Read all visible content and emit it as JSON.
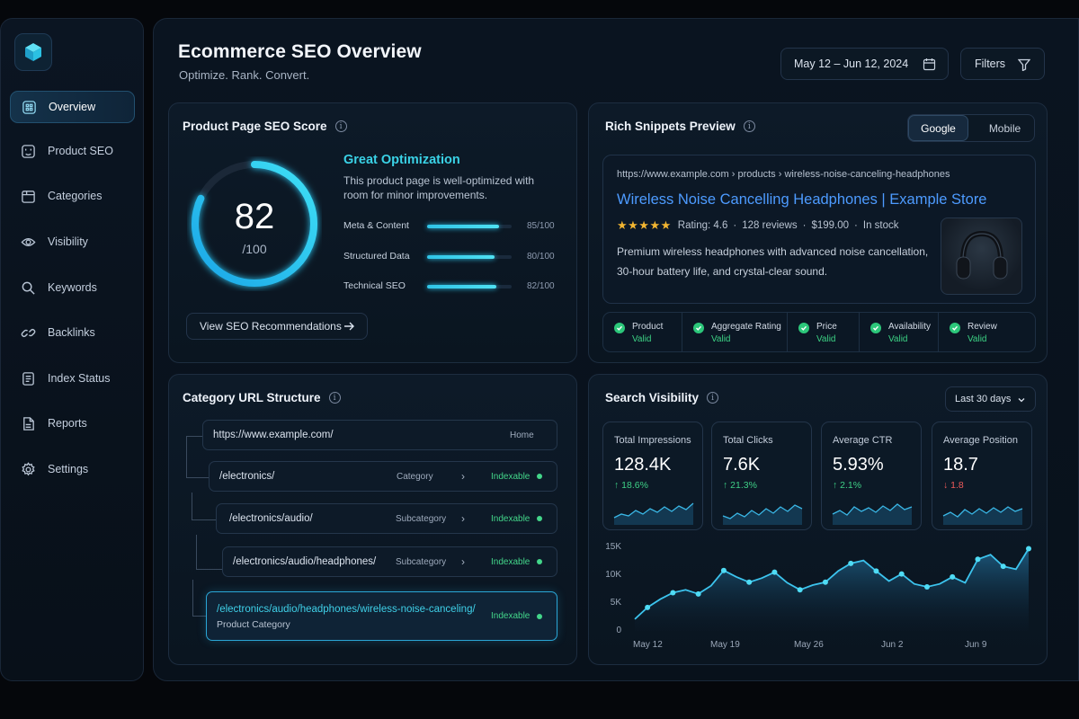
{
  "sidebar": {
    "logo": "cube-logo-icon",
    "items": [
      {
        "label": "Overview",
        "icon": "overview-icon",
        "active": true
      },
      {
        "label": "Product SEO",
        "icon": "product-seo-icon"
      },
      {
        "label": "Categories",
        "icon": "categories-icon"
      },
      {
        "label": "Visibility",
        "icon": "eye-icon"
      },
      {
        "label": "Keywords",
        "icon": "search-icon"
      },
      {
        "label": "Backlinks",
        "icon": "link-icon"
      },
      {
        "label": "Index Status",
        "icon": "document-icon"
      },
      {
        "label": "Reports",
        "icon": "report-icon"
      },
      {
        "label": "Settings",
        "icon": "gear-icon"
      }
    ]
  },
  "header": {
    "title": "Ecommerce SEO Overview",
    "subtitle": "Optimize. Rank. Convert.",
    "date_range": "May 12 – Jun 12, 2024",
    "filters_label": "Filters"
  },
  "score_card": {
    "title": "Product Page SEO Score",
    "score": "82",
    "score_denominator": "/100",
    "score_fraction": 0.82,
    "status_title": "Great Optimization",
    "status_desc": "This product page is well-optimized with room for minor improvements.",
    "metrics": [
      {
        "label": "Meta & Content",
        "value": "85/100",
        "fraction": 0.85
      },
      {
        "label": "Structured Data",
        "value": "80/100",
        "fraction": 0.8
      },
      {
        "label": "Technical SEO",
        "value": "82/100",
        "fraction": 0.82
      }
    ],
    "button_label": "View SEO Recommendations"
  },
  "snippets": {
    "title": "Rich Snippets Preview",
    "tabs": [
      "Google",
      "Mobile"
    ],
    "url": "https://www.example.com › products › wireless-noise-canceling-headphones",
    "result_title": "Wireless Noise Cancelling Headphones | Example Store",
    "stars": "★★★★★",
    "rating": "Rating: 4.6",
    "reviews": "128 reviews",
    "price": "$199.00",
    "stock": "In stock",
    "description": "Premium wireless headphones with advanced noise cancellation, 30-hour  battery life, and crystal-clear sound.",
    "checks": [
      {
        "name": "Product",
        "status": "Valid"
      },
      {
        "name": "Aggregate Rating",
        "status": "Valid"
      },
      {
        "name": "Price",
        "status": "Valid"
      },
      {
        "name": "Availability",
        "status": "Valid"
      },
      {
        "name": "Review",
        "status": "Valid"
      }
    ]
  },
  "url_structure": {
    "title": "Category URL Structure",
    "rows": [
      {
        "path": "https://www.example.com/",
        "type": "Home"
      },
      {
        "path": "/electronics/",
        "type": "Category",
        "status": "Indexable"
      },
      {
        "path": "/electronics/audio/",
        "type": "Subcategory",
        "status": "Indexable"
      },
      {
        "path": "/electronics/audio/headphones/",
        "type": "Subcategory",
        "status": "Indexable"
      },
      {
        "path": "/electronics/audio/headphones/wireless-noise-canceling/",
        "type": "Product Category",
        "status": "Indexable"
      }
    ]
  },
  "visibility": {
    "title": "Search Visibility",
    "range": "Last 30 days",
    "stats": [
      {
        "label": "Total Impressions",
        "value": "128.4K",
        "change": "↑ 18.6%",
        "dir": "up"
      },
      {
        "label": "Total Clicks",
        "value": "7.6K",
        "change": "↑ 21.3%",
        "dir": "up"
      },
      {
        "label": "Average CTR",
        "value": "5.93%",
        "change": "↑ 2.1%",
        "dir": "up"
      },
      {
        "label": "Average Position",
        "value": "18.7",
        "change": "↓ 1.8",
        "dir": "down"
      }
    ]
  },
  "chart_data": {
    "type": "area",
    "title": "",
    "xlabel": "",
    "ylabel": "",
    "ylim": [
      0,
      15000
    ],
    "y_ticks": [
      "0",
      "5K",
      "10K",
      "15K"
    ],
    "x_ticks": [
      "May 12",
      "May 19",
      "May 26",
      "Jun 2",
      "Jun 9"
    ],
    "x": [
      "May 12",
      "May 13",
      "May 14",
      "May 15",
      "May 16",
      "May 17",
      "May 18",
      "May 19",
      "May 20",
      "May 21",
      "May 22",
      "May 23",
      "May 24",
      "May 25",
      "May 26",
      "May 27",
      "May 28",
      "May 29",
      "May 30",
      "May 31",
      "Jun 1",
      "Jun 2",
      "Jun 3",
      "Jun 4",
      "Jun 5",
      "Jun 6",
      "Jun 7",
      "Jun 8",
      "Jun 9",
      "Jun 10",
      "Jun 11",
      "Jun 12"
    ],
    "series": [
      {
        "values": [
          2000,
          4000,
          5400,
          6500,
          7000,
          6300,
          7700,
          10300,
          9200,
          8300,
          9000,
          10000,
          8200,
          7000,
          7800,
          8300,
          10200,
          11500,
          12000,
          10200,
          8500,
          9700,
          8000,
          7500,
          8000,
          9200,
          8200,
          12200,
          13000,
          11000,
          10500,
          14000
        ]
      }
    ],
    "grid": false,
    "legend": "none"
  }
}
